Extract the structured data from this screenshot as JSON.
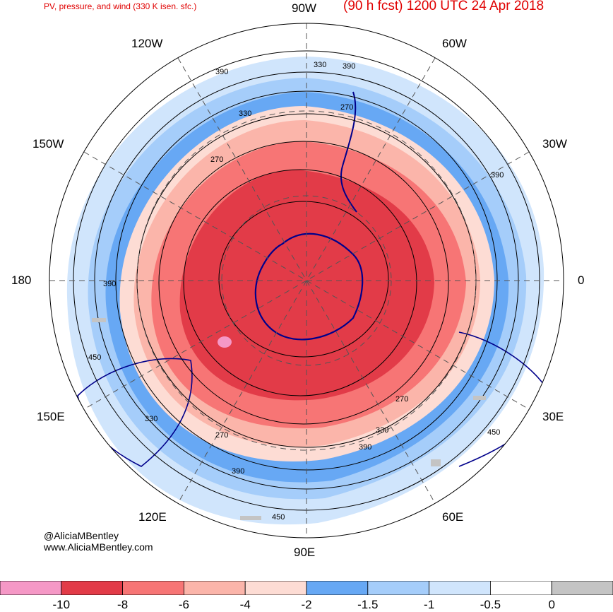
{
  "header": {
    "product": "PV, pressure, and wind (330 K isen. sfc.)",
    "valid": "(90 h fcst) 1200 UTC 24 Apr 2018"
  },
  "longitudes": {
    "top": "90W",
    "upper_left": "120W",
    "upper_right": "60W",
    "left_upper": "150W",
    "right_upper": "30W",
    "left": "180",
    "right": "0",
    "left_lower": "150E",
    "right_lower": "30E",
    "lower_left": "120E",
    "lower_right": "60E",
    "bottom": "90E"
  },
  "contour_labels": [
    "390",
    "330",
    "390",
    "330",
    "270",
    "270",
    "390",
    "390",
    "450",
    "330",
    "270",
    "390",
    "270",
    "330",
    "390",
    "450",
    "450"
  ],
  "credits": {
    "handle": "@AliciaMBentley",
    "site": "www.AliciaMBentley.com"
  },
  "colorbar": {
    "ticks": [
      "-10",
      "-8",
      "-6",
      "-4",
      "-2",
      "-1.5",
      "-1",
      "-0.5",
      "0"
    ],
    "colors": [
      "#f598c6",
      "#e23b48",
      "#f77575",
      "#fbb5aa",
      "#fddcd4",
      "#67a8f4",
      "#a5cdfa",
      "#d0e5fc",
      "#ffffff",
      "#c4c4c4"
    ]
  }
}
